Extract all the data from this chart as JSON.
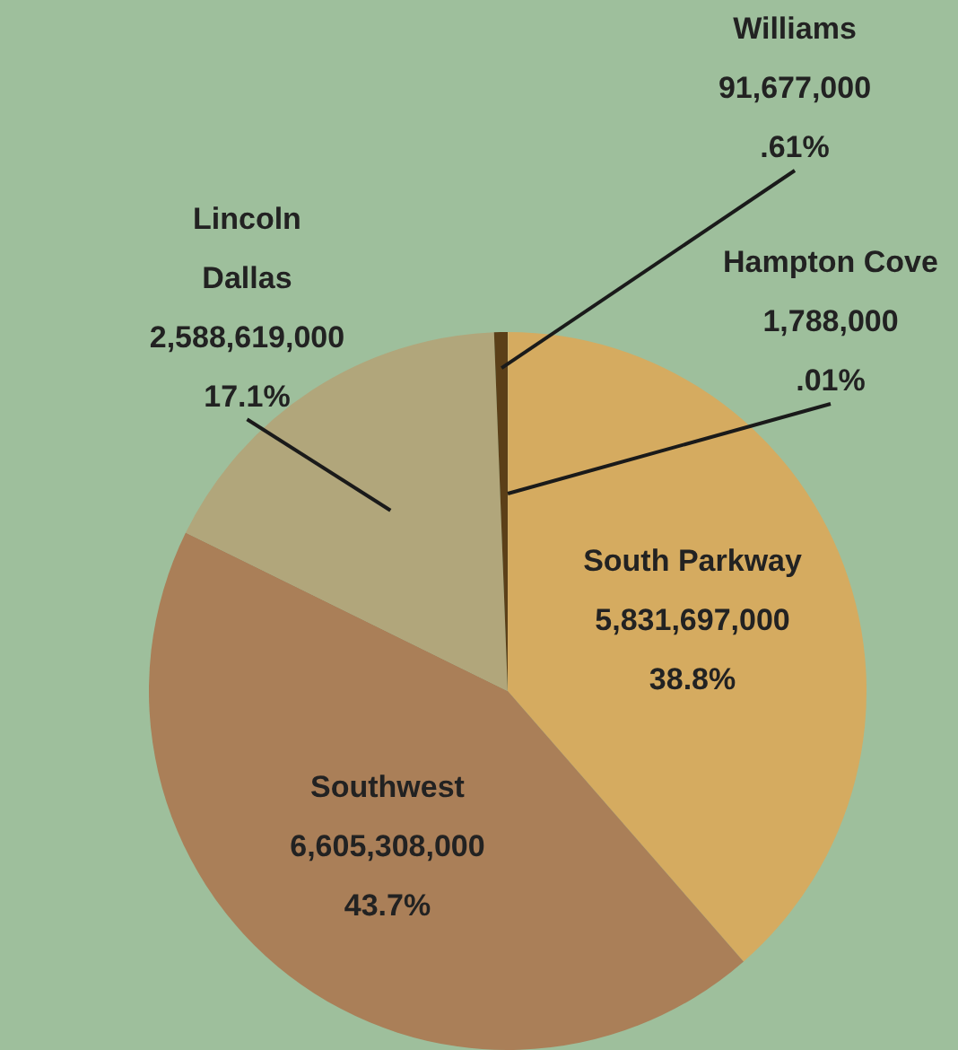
{
  "chart_data": {
    "type": "pie",
    "categories": [
      "Hampton Cove",
      "South Parkway",
      "Southwest",
      "Lincoln Dallas",
      "Williams"
    ],
    "values": [
      1788000,
      5831697000,
      6605308000,
      2588619000,
      91677000
    ],
    "colors": [
      "#f1e3a6",
      "#d5ab60",
      "#aa7f58",
      "#b1a67b",
      "#5b3f18"
    ],
    "value_labels": [
      "1,788,000\n.01%",
      "5,831,697,000\n38.8%",
      "6,605,308,000\n43.7%",
      "2,588,619,000\n17.1%",
      "91,677,000\n.61%"
    ],
    "legend": false
  }
}
